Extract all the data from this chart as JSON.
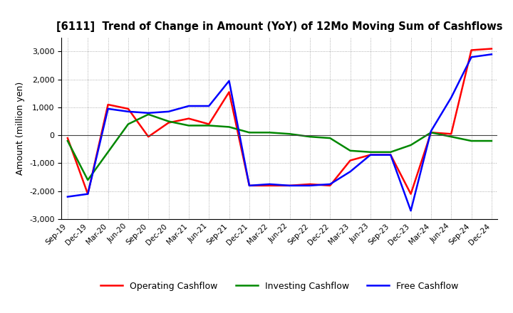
{
  "title": "[6111]  Trend of Change in Amount (YoY) of 12Mo Moving Sum of Cashflows",
  "ylabel": "Amount (million yen)",
  "x_labels": [
    "Sep-19",
    "Dec-19",
    "Mar-20",
    "Jun-20",
    "Sep-20",
    "Dec-20",
    "Mar-21",
    "Jun-21",
    "Sep-21",
    "Dec-21",
    "Mar-22",
    "Jun-22",
    "Sep-22",
    "Dec-22",
    "Mar-23",
    "Jun-23",
    "Sep-23",
    "Dec-23",
    "Mar-24",
    "Jun-24",
    "Sep-24",
    "Dec-24"
  ],
  "operating": [
    -100,
    -2100,
    1100,
    950,
    -50,
    450,
    600,
    400,
    1550,
    -1800,
    -1800,
    -1800,
    -1750,
    -1800,
    -900,
    -700,
    -700,
    -2100,
    100,
    50,
    3050,
    3100
  ],
  "investing": [
    -200,
    -1600,
    -600,
    400,
    750,
    500,
    350,
    350,
    300,
    100,
    100,
    50,
    -50,
    -100,
    -550,
    -600,
    -600,
    -350,
    100,
    -50,
    -200,
    -200
  ],
  "free": [
    -2200,
    -2100,
    950,
    850,
    800,
    850,
    1050,
    1050,
    1950,
    -1800,
    -1750,
    -1800,
    -1800,
    -1750,
    -1300,
    -700,
    -700,
    -2700,
    150,
    1350,
    2800,
    2900
  ],
  "ylim": [
    -3000,
    3500
  ],
  "yticks": [
    -3000,
    -2000,
    -1000,
    0,
    1000,
    2000,
    3000
  ],
  "colors": {
    "operating": "#ff0000",
    "investing": "#008800",
    "free": "#0000ff"
  },
  "legend_labels": [
    "Operating Cashflow",
    "Investing Cashflow",
    "Free Cashflow"
  ],
  "background_color": "#ffffff",
  "grid_color": "#999999"
}
